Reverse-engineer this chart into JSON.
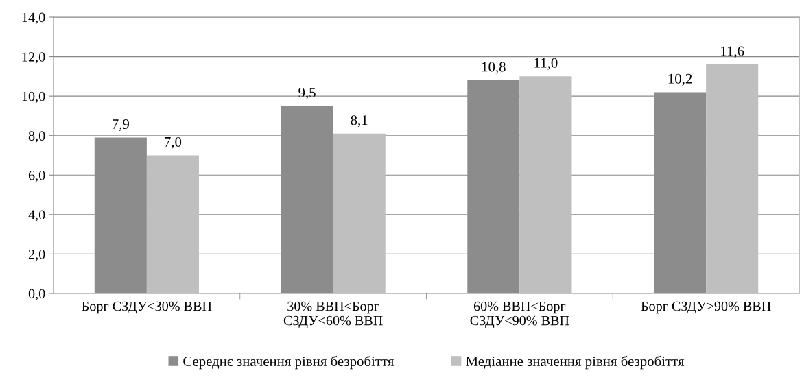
{
  "chart_data": {
    "type": "bar",
    "categories": [
      "Борг СЗДУ<30% ВВП",
      "30% ВВП<Борг\nСЗДУ<60% ВВП",
      "60% ВВП<Борг\nСЗДУ<90% ВВП",
      "Борг СЗДУ>90% ВВП"
    ],
    "series": [
      {
        "name": "Середнє значення рівня безробіття",
        "color": "#8c8c8c",
        "values": [
          7.9,
          9.5,
          10.8,
          10.2
        ],
        "value_labels": [
          "7,9",
          "9,5",
          "10,8",
          "10,2"
        ]
      },
      {
        "name": "Медіанне значення рівня безробіття",
        "color": "#bfbfbf",
        "values": [
          7.0,
          8.1,
          11.0,
          11.6
        ],
        "value_labels": [
          "7,0",
          "8,1",
          "11,0",
          "11,6"
        ]
      }
    ],
    "ylim": [
      0,
      14
    ],
    "yticks": [
      {
        "value": 0,
        "label": "0,0"
      },
      {
        "value": 2,
        "label": "2,0"
      },
      {
        "value": 4,
        "label": "4,0"
      },
      {
        "value": 6,
        "label": "6,0"
      },
      {
        "value": 8,
        "label": "8,0"
      },
      {
        "value": 10,
        "label": "10,0"
      },
      {
        "value": 12,
        "label": "12,0"
      },
      {
        "value": 14,
        "label": "14,0"
      }
    ],
    "grid": "y",
    "legend": "bottom"
  }
}
